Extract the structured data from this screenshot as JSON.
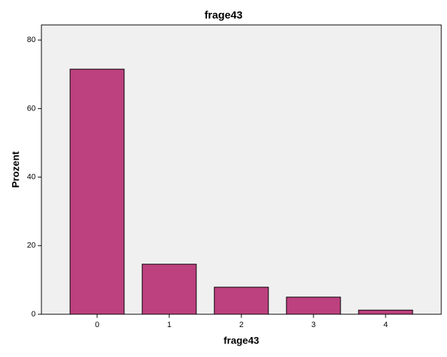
{
  "chart_data": {
    "type": "bar",
    "title": "frage43",
    "x_label": "frage43",
    "y_label": "Prozent",
    "categories": [
      "0",
      "1",
      "2",
      "3",
      "4"
    ],
    "values": [
      71.5,
      14.6,
      7.9,
      5.0,
      1.2
    ],
    "color": "#bc417e",
    "ylim": [
      0,
      84.4
    ],
    "yticks": [
      0,
      20,
      40,
      60,
      80
    ],
    "grid": false
  }
}
